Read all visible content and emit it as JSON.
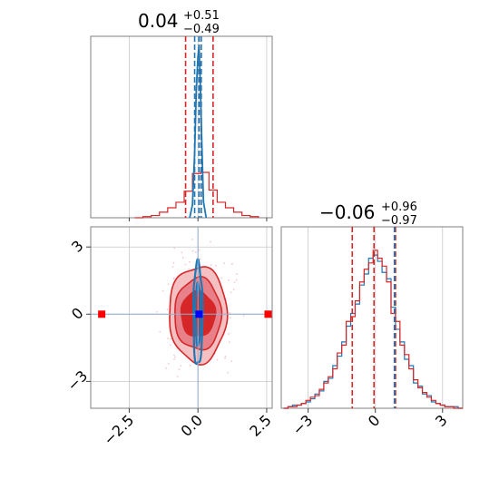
{
  "chart_data": {
    "type": "corner",
    "params": [
      {
        "title": {
          "median": "0.04",
          "plus": "+0.51",
          "minus": "−0.49"
        },
        "range": [
          -3.9,
          2.7
        ],
        "ticks": [
          -2.5,
          0.0,
          2.5
        ],
        "tick_labels": [
          "−2.5",
          "0.0",
          "2.5"
        ],
        "quantiles_red": [
          -0.45,
          0.04,
          0.55
        ],
        "quantiles_blue": [
          -0.12,
          0.04,
          0.12
        ]
      },
      {
        "title": {
          "median": "−0.06",
          "plus": "+0.96",
          "minus": "−0.97"
        },
        "range": [
          -4.2,
          3.9
        ],
        "ticks": [
          -3,
          0,
          3
        ],
        "tick_labels": [
          "−3",
          "0",
          "3"
        ],
        "quantiles_red": [
          -1.03,
          -0.06,
          0.9
        ],
        "quantiles_blue": [
          0.85
        ]
      }
    ],
    "hist_red_p1": {
      "bins": [
        -2.3,
        -2.0,
        -1.7,
        -1.4,
        -1.1,
        -0.8,
        -0.5,
        -0.2,
        0.1,
        0.4,
        0.7,
        1.0,
        1.3,
        1.6,
        1.9,
        2.2
      ],
      "counts": [
        0,
        1,
        2,
        5,
        9,
        14,
        24,
        40,
        41,
        25,
        14,
        9,
        5,
        2,
        1
      ]
    },
    "hist_blue_p1": {
      "x": [
        -0.3,
        -0.2,
        -0.12,
        -0.06,
        0.0,
        0.04,
        0.08,
        0.14,
        0.2,
        0.3
      ],
      "y": [
        0,
        12,
        60,
        120,
        150,
        160,
        130,
        70,
        15,
        0
      ]
    },
    "hist_red_p2": {
      "x": [
        -4.1,
        -3.9,
        -3.7,
        -3.5,
        -3.3,
        -3.1,
        -2.9,
        -2.7,
        -2.5,
        -2.3,
        -2.1,
        -1.9,
        -1.7,
        -1.5,
        -1.3,
        -1.1,
        -0.9,
        -0.7,
        -0.5,
        -0.3,
        -0.1,
        0.1,
        0.3,
        0.5,
        0.7,
        0.9,
        1.1,
        1.3,
        1.5,
        1.7,
        1.9,
        2.1,
        2.3,
        2.5,
        2.7,
        2.9,
        3.1,
        3.3,
        3.5,
        3.7
      ],
      "y": [
        0,
        1,
        1,
        2,
        3,
        5,
        7,
        8,
        12,
        16,
        20,
        25,
        35,
        40,
        55,
        58,
        68,
        80,
        88,
        92,
        100,
        95,
        90,
        80,
        60,
        55,
        40,
        34,
        25,
        18,
        13,
        10,
        7,
        5,
        3,
        2,
        1,
        1,
        0,
        0
      ]
    },
    "hist_blue_p2": {
      "x": [
        -4.1,
        -3.9,
        -3.7,
        -3.5,
        -3.3,
        -3.1,
        -2.9,
        -2.7,
        -2.5,
        -2.3,
        -2.1,
        -1.9,
        -1.7,
        -1.5,
        -1.3,
        -1.1,
        -0.9,
        -0.7,
        -0.5,
        -0.3,
        -0.1,
        0.1,
        0.3,
        0.5,
        0.7,
        0.9,
        1.1,
        1.3,
        1.5,
        1.7,
        1.9,
        2.1,
        2.3,
        2.5,
        2.7,
        2.9,
        3.1,
        3.3,
        3.5,
        3.7
      ],
      "y": [
        0,
        1,
        2,
        2,
        3,
        4,
        6,
        9,
        11,
        17,
        19,
        27,
        33,
        42,
        52,
        60,
        66,
        78,
        85,
        95,
        97,
        93,
        86,
        82,
        64,
        50,
        42,
        31,
        27,
        16,
        14,
        9,
        8,
        4,
        3,
        2,
        1,
        1,
        1,
        0
      ]
    },
    "contours_red": [
      {
        "level": "outer",
        "rx": 1.05,
        "ry": 2.15,
        "fill": "#f4c0c2"
      },
      {
        "level": "mid",
        "rx": 0.85,
        "ry": 1.6,
        "fill": "#e8808a"
      },
      {
        "level": "inner",
        "rx": 0.62,
        "ry": 1.0,
        "fill": "#d62728"
      }
    ],
    "contours_blue": [
      {
        "level": "outer",
        "rx": 0.17,
        "ry": 2.3
      },
      {
        "level": "inner",
        "rx": 0.09,
        "ry": 1.4
      }
    ],
    "markers": [
      {
        "x": -3.5,
        "y": 0.0,
        "color": "#ff0000"
      },
      {
        "x": 2.55,
        "y": 0.0,
        "color": "#ff0000"
      },
      {
        "x": 0.04,
        "y": 0.0,
        "color": "#0000ff"
      }
    ],
    "crosshair": {
      "x": 0.0,
      "y": 0.0
    },
    "colors": {
      "red": "#d62728",
      "blue": "#1f77b4"
    },
    "grid": true
  }
}
